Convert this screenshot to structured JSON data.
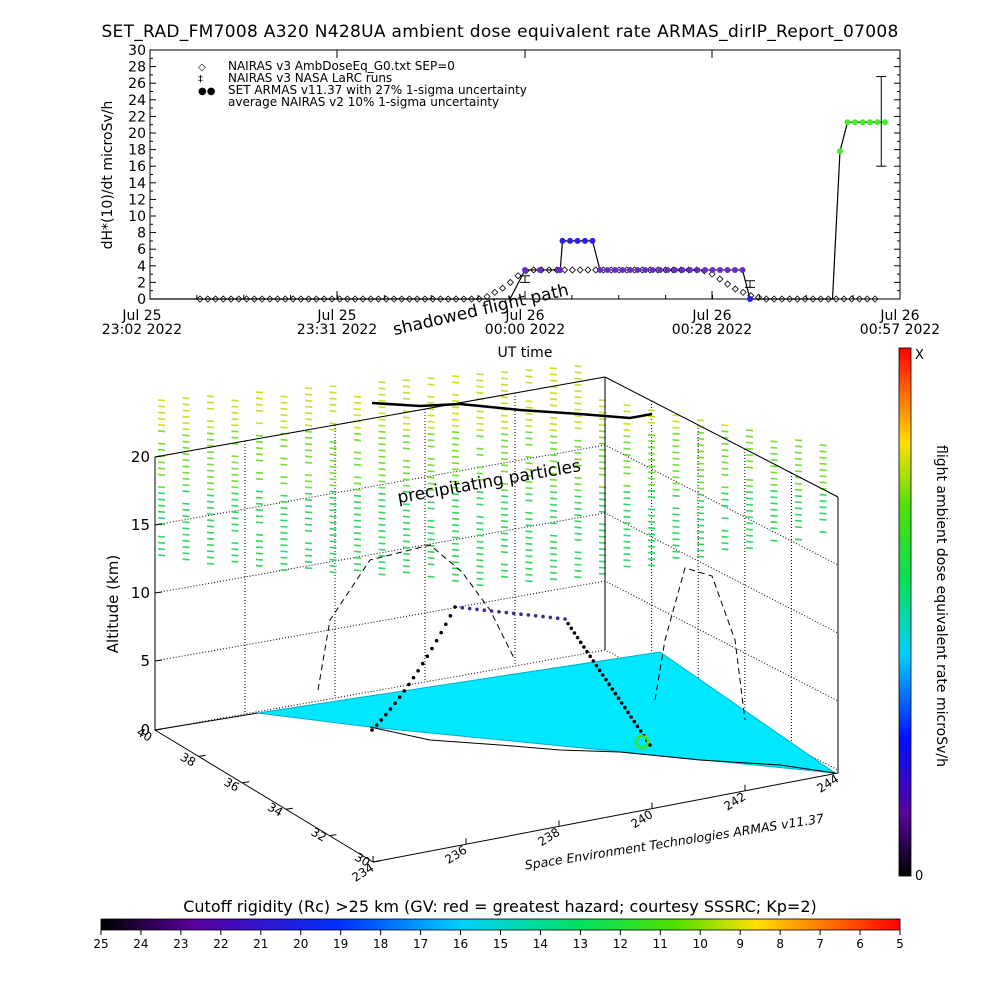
{
  "title": "SET_RAD_FM7008  A320 N428UA ambient dose equivalent rate ARMAS_dirIP_Report_07008",
  "chart_data": [
    {
      "type": "line",
      "ylabel": "dH*(10)/dt microSv/h",
      "xlabel": "UT time",
      "ylim": [
        0,
        30
      ],
      "y_ticks": [
        "0",
        "2",
        "4",
        "6",
        "8",
        "10",
        "12",
        "14",
        "16",
        "18",
        "20",
        "22",
        "24",
        "26",
        "28",
        "30"
      ],
      "x_ticks": [
        {
          "line1": "Jul 25",
          "line2": "23:02 2022"
        },
        {
          "line1": "Jul 25",
          "line2": "23:31 2022"
        },
        {
          "line1": "Jul 26",
          "line2": "00:00 2022"
        },
        {
          "line1": "Jul 26",
          "line2": "00:28 2022"
        },
        {
          "line1": "Jul 26",
          "line2": "00:57 2022"
        }
      ],
      "legend": [
        {
          "symbol": "◇",
          "label": "NAIRAS v3 AmbDoseEq_G0.txt SEP=0"
        },
        {
          "symbol": "‡",
          "label": "NAIRAS v3 NASA LaRC runs"
        },
        {
          "symbol": "●●",
          "label": "SET ARMAS v11.37 with 27% 1-sigma uncertainty",
          "color": "#1f2fe0"
        },
        {
          "symbol": "",
          "label": "average NAIRAS v2 10% 1-sigma uncertainty"
        }
      ],
      "series": [
        {
          "name": "NAIRAS v3 AmbDoseEq_G0.txt SEP=0",
          "x_index": [
            0,
            1,
            2,
            3,
            4,
            5,
            6,
            7,
            8,
            9,
            10,
            11,
            12,
            13,
            14,
            15,
            16,
            17,
            18,
            19,
            20,
            21,
            22,
            23,
            24,
            25,
            26,
            27,
            28,
            29,
            30,
            31,
            32,
            33,
            34,
            35,
            36,
            37,
            38,
            39,
            40,
            41,
            42,
            43,
            44,
            45,
            46,
            47,
            48,
            49,
            50,
            51,
            52,
            53,
            54,
            55,
            56,
            57,
            58,
            59,
            60,
            61,
            62,
            63,
            64,
            65,
            66,
            67,
            68,
            69,
            70,
            71,
            72,
            73,
            74,
            75,
            76,
            77,
            78,
            79,
            80,
            81,
            82,
            83,
            84,
            85,
            86,
            87
          ],
          "values": [
            0,
            0,
            0,
            0,
            0,
            0,
            0,
            0,
            0,
            0,
            0,
            0,
            0,
            0,
            0,
            0,
            0,
            0,
            0,
            0,
            0,
            0,
            0,
            0,
            0,
            0,
            0,
            0,
            0,
            0,
            0,
            0,
            0,
            0,
            0,
            0,
            0,
            0.3,
            0.8,
            1.3,
            2.0,
            2.8,
            3.4,
            3.5,
            3.5,
            3.5,
            3.5,
            3.5,
            3.5,
            3.5,
            3.5,
            3.5,
            3.5,
            3.5,
            3.5,
            3.5,
            3.5,
            3.5,
            3.5,
            3.5,
            3.5,
            3.5,
            3.5,
            3.5,
            3.5,
            3.4,
            3.0,
            2.4,
            1.8,
            1.2,
            0.8,
            0.4,
            0.2,
            0,
            0,
            0,
            0,
            0,
            0,
            0,
            0,
            0,
            0,
            0,
            0,
            0,
            0,
            0
          ]
        },
        {
          "name": "SET ARMAS v11.37",
          "time_frac": [
            0.0,
            0.45,
            0.48,
            0.5,
            0.52,
            0.545,
            0.547,
            0.55,
            0.56,
            0.57,
            0.58,
            0.59,
            0.6,
            0.61,
            0.62,
            0.63,
            0.64,
            0.65,
            0.66,
            0.67,
            0.68,
            0.69,
            0.7,
            0.71,
            0.72,
            0.73,
            0.74,
            0.75,
            0.76,
            0.77,
            0.78,
            0.79,
            0.8,
            0.85,
            0.9,
            0.91,
            0.92,
            0.93,
            0.94,
            0.95,
            0.96,
            0.97,
            0.98
          ],
          "values": [
            0,
            0,
            0,
            3.5,
            3.5,
            3.5,
            3.5,
            7.0,
            7.0,
            7.0,
            7.0,
            7.0,
            3.5,
            3.5,
            3.5,
            3.5,
            3.5,
            3.5,
            3.5,
            3.5,
            3.5,
            3.5,
            3.5,
            3.5,
            3.5,
            3.5,
            3.5,
            3.5,
            3.5,
            3.5,
            3.5,
            3.5,
            0,
            0,
            0,
            0,
            17.8,
            21.3,
            21.3,
            21.3,
            21.3,
            21.3,
            21.3
          ]
        }
      ],
      "error_bars": [
        {
          "time_frac": 0.5,
          "low": 2.0,
          "high": 2.8
        },
        {
          "time_frac": 0.8,
          "low": 1.4,
          "high": 2.2
        },
        {
          "time_frac": 0.975,
          "low": 16.0,
          "high": 26.8
        }
      ]
    },
    {
      "type": "scatter",
      "subtype": "3d-flight-track",
      "zlabel": "Altitude (km)",
      "z_ticks": [
        "0",
        "5",
        "10",
        "15",
        "20"
      ],
      "lat_ticks": [
        "30",
        "32",
        "34",
        "36",
        "38",
        "40"
      ],
      "lon_ticks": [
        "234",
        "236",
        "238",
        "240",
        "242",
        "244"
      ],
      "annotations": [
        "shadowed flight path",
        "precipitating particles"
      ],
      "credit": "Space Environment Technologies ARMAS v11.37",
      "colorbar_label": "flight ambient dose equivalent rate microSv/h",
      "colorbar_top": "X",
      "colorbar_bottom": "0"
    },
    {
      "type": "heatmap",
      "subtype": "colorbar",
      "caption": "Cutoff rigidity (Rc) >25 km (GV: red = greatest hazard; courtesy SSSRC; Kp=2)",
      "ticks": [
        "25",
        "24",
        "23",
        "22",
        "21",
        "20",
        "19",
        "18",
        "17",
        "16",
        "15",
        "14",
        "13",
        "12",
        "11",
        "10",
        "9",
        "8",
        "7",
        "6",
        "5"
      ]
    }
  ]
}
